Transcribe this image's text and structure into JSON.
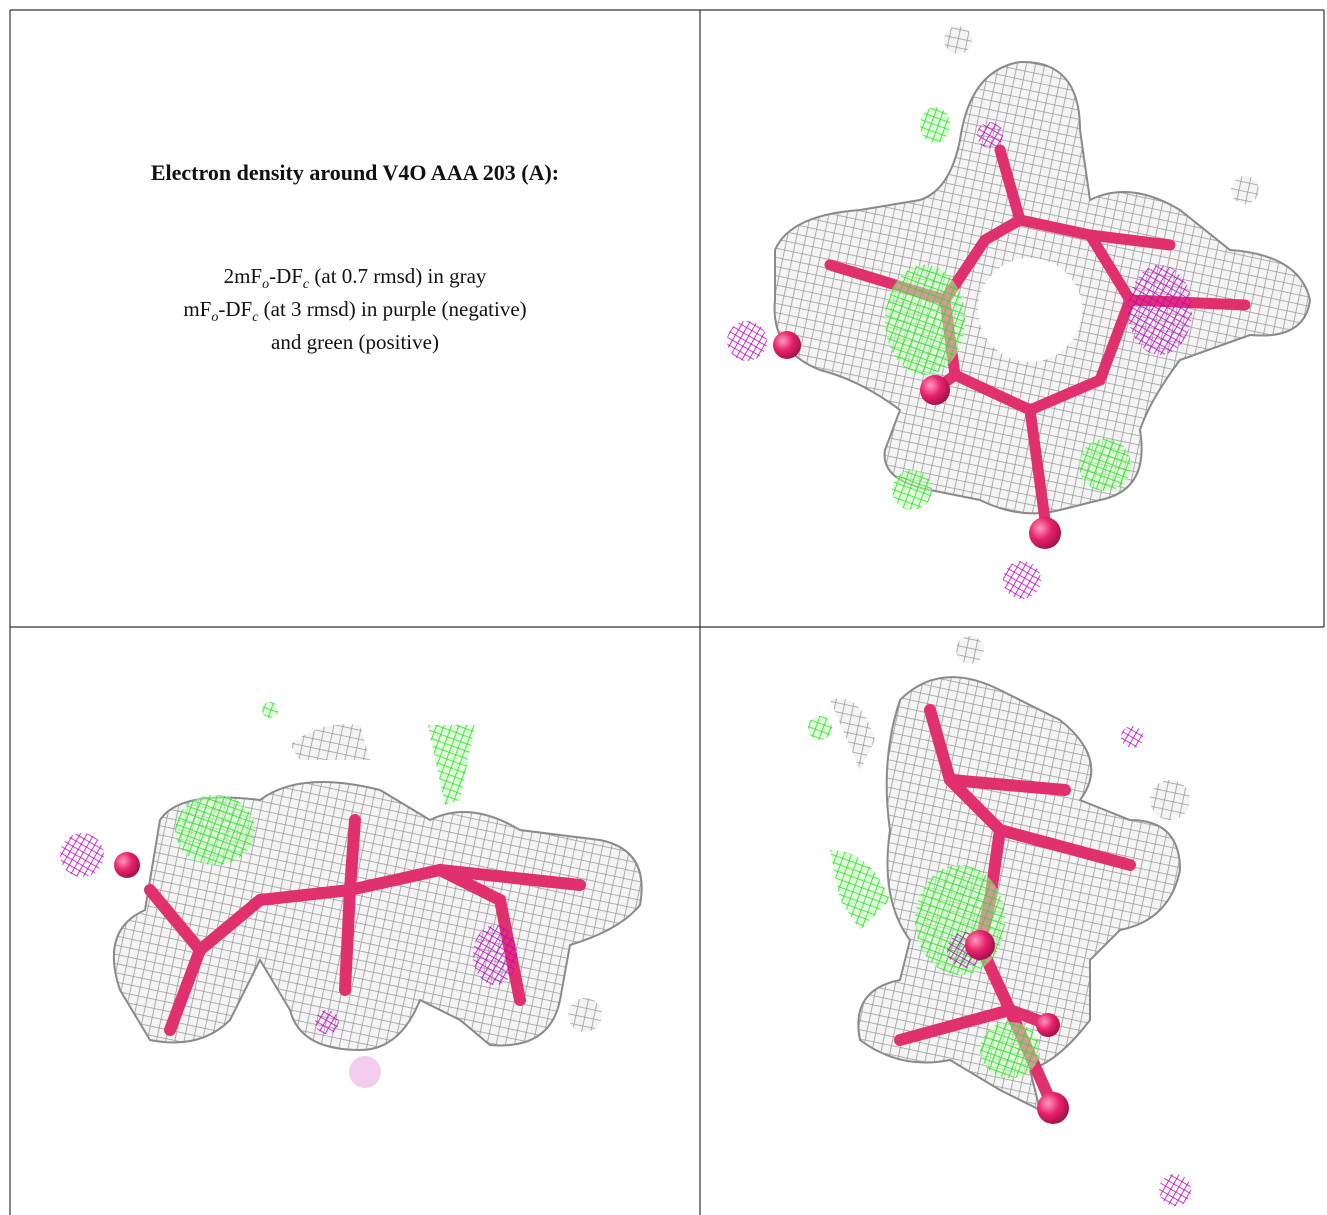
{
  "caption": {
    "title": "Electron density around V4O AAA 203 (A):",
    "lines": [
      [
        {
          "text": "2mF"
        },
        {
          "text": "o",
          "sub": true
        },
        {
          "text": "-DF"
        },
        {
          "text": "c",
          "sub": true
        },
        {
          "text": " (at 0.7 rmsd) in gray"
        }
      ],
      [
        {
          "text": "mF"
        },
        {
          "text": "o",
          "sub": true
        },
        {
          "text": "-DF"
        },
        {
          "text": "c",
          "sub": true
        },
        {
          "text": " (at 3 rmsd) in purple (negative)"
        }
      ],
      [
        {
          "text": "and green (positive)"
        }
      ]
    ]
  }
}
